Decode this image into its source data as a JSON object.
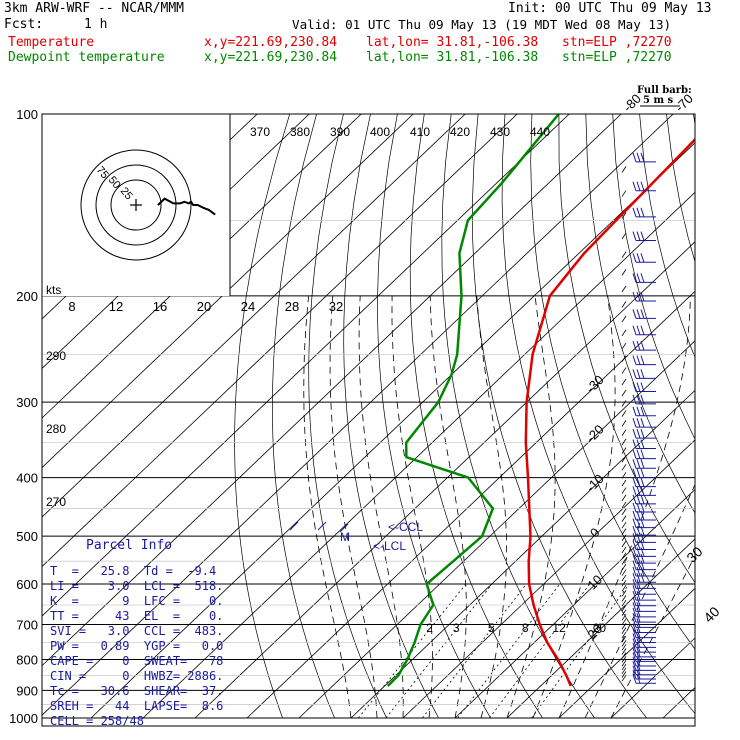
{
  "header": {
    "model": "3km ARW-WRF -- NCAR/MMM",
    "init": "Init: 00 UTC Thu 09 May 13",
    "fcst_label": "Fcst:",
    "fcst_value": "1 h",
    "valid": "Valid: 01 UTC Thu 09 May 13 (19 MDT Wed 08 May 13)",
    "temp_name": "Temperature",
    "dew_name": "Dewpoint temperature",
    "xy": "x,y=221.69,230.84",
    "latlon": "lat,lon= 31.81,-106.38",
    "stn": "stn=ELP ,72270"
  },
  "colors": {
    "temperature": "#e00000",
    "dewpoint": "#008800",
    "parcel_text": "#1a1aa0",
    "wind": "#1a1aa0"
  },
  "full_barb_label": "Full barb:",
  "full_barb_value": "5 m s",
  "parcel": {
    "title": "Parcel Info",
    "rows": [
      "T  =   25.8  Td =  -9.4",
      "LI =    3.0  LCL =  518.",
      "K  =      9  LFC =    0.",
      "TT =     43  EL  =    0.",
      "SVI =   3.0  CCL =  483.",
      "PW =   0.89  YGP =   0.0",
      "CAPE =    0  SWEAT=   78",
      "CIN =     0  HWBZ= 2886.",
      "Tc =   30.6  SHEAR=  37.",
      "SREH =   44  LAPSE=  8.6",
      "CELL = 258/48"
    ]
  },
  "annotations": {
    "ccl": "<-CCL",
    "lcl": "<-LCL",
    "m": "M",
    "kts": "kts"
  },
  "chart_data": {
    "type": "line",
    "title": "",
    "xlabel": "",
    "ylabel": "",
    "y_scale": "log-pressure",
    "pressure_ticks": [
      "100",
      "200",
      "300",
      "400",
      "500",
      "600",
      "700",
      "800",
      "900",
      "1000"
    ],
    "pressure_values": [
      100,
      200,
      300,
      400,
      500,
      600,
      700,
      800,
      900,
      1000
    ],
    "skew_temp_ticks": [
      "-80",
      "-70",
      "-60",
      "-50",
      "-40",
      "-30",
      "-20",
      "-10",
      "0",
      "10",
      "20",
      "30",
      "40"
    ],
    "theta_labels": [
      "370",
      "380",
      "390",
      "400",
      "410",
      "420",
      "430",
      "440"
    ],
    "mixing_ratio_labels": [
      "2",
      "3",
      "5",
      "8",
      "12",
      "20"
    ],
    "hodograph_speed_ticks": [
      "8",
      "12",
      "16",
      "20",
      "24",
      "28",
      "32"
    ],
    "hodograph_ring_labels": [
      "75",
      "50",
      "25"
    ],
    "left_theta_labels": [
      "290",
      "280",
      "270"
    ],
    "series": [
      {
        "name": "Temperature",
        "pressure": [
          885,
          850,
          800,
          750,
          700,
          650,
          600,
          550,
          500,
          450,
          400,
          350,
          300,
          250,
          200,
          170,
          150,
          130,
          115,
          100
        ],
        "temperature_c": [
          25.8,
          22.8,
          18.0,
          12.5,
          7.4,
          2.3,
          -2.8,
          -7.5,
          -12.2,
          -18.0,
          -24.5,
          -32.0,
          -40.0,
          -48.5,
          -57.0,
          -59.0,
          -59.5,
          -60.0,
          -60.5,
          -61.0
        ]
      },
      {
        "name": "Dewpoint temperature",
        "pressure": [
          885,
          850,
          800,
          750,
          700,
          650,
          600,
          550,
          500,
          450,
          400,
          370,
          350,
          300,
          270,
          250,
          200,
          170,
          150,
          130,
          100
        ],
        "temperature_c": [
          -9.4,
          -9.5,
          -11.0,
          -13.0,
          -15.5,
          -17.0,
          -22.5,
          -22.0,
          -21.5,
          -25.0,
          -36.0,
          -52.0,
          -55.0,
          -57.0,
          -60.0,
          -63.0,
          -74.0,
          -83.0,
          -88.0,
          -89.0,
          -92.0
        ]
      }
    ],
    "hodograph_kts": [
      [
        10,
        0
      ],
      [
        13,
        4
      ],
      [
        17,
        1
      ],
      [
        20,
        1
      ],
      [
        22,
        2
      ],
      [
        24,
        1
      ],
      [
        25,
        2
      ],
      [
        26,
        0
      ],
      [
        28,
        0
      ],
      [
        31,
        -2
      ],
      [
        33,
        -3
      ],
      [
        36,
        -6
      ]
    ]
  }
}
